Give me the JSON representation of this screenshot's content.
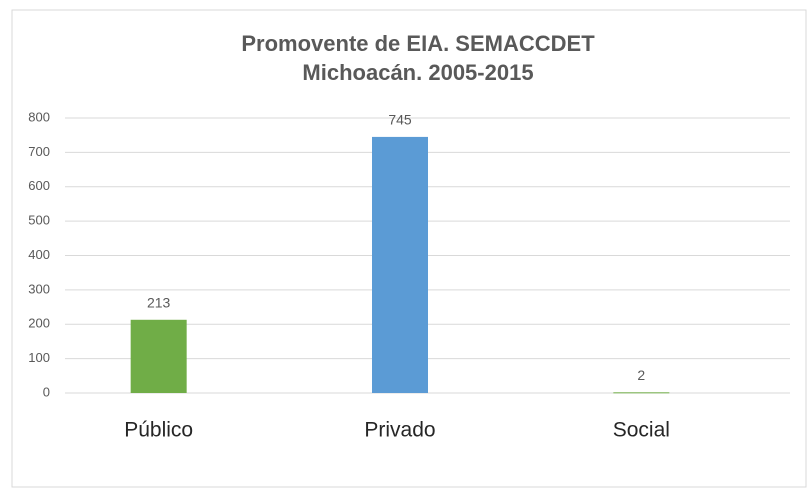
{
  "chart_data": {
    "type": "bar",
    "title": [
      "Promovente de EIA. SEMACCDET",
      "Michoacán. 2005-2015"
    ],
    "categories": [
      "Público",
      "Privado",
      "Social"
    ],
    "values": [
      213,
      745,
      2
    ],
    "colors": [
      "#70ad47",
      "#5b9bd5",
      "#70ad47"
    ],
    "ylim": [
      0,
      800
    ],
    "yticks": [
      0,
      100,
      200,
      300,
      400,
      500,
      600,
      700,
      800
    ],
    "grid": true
  }
}
